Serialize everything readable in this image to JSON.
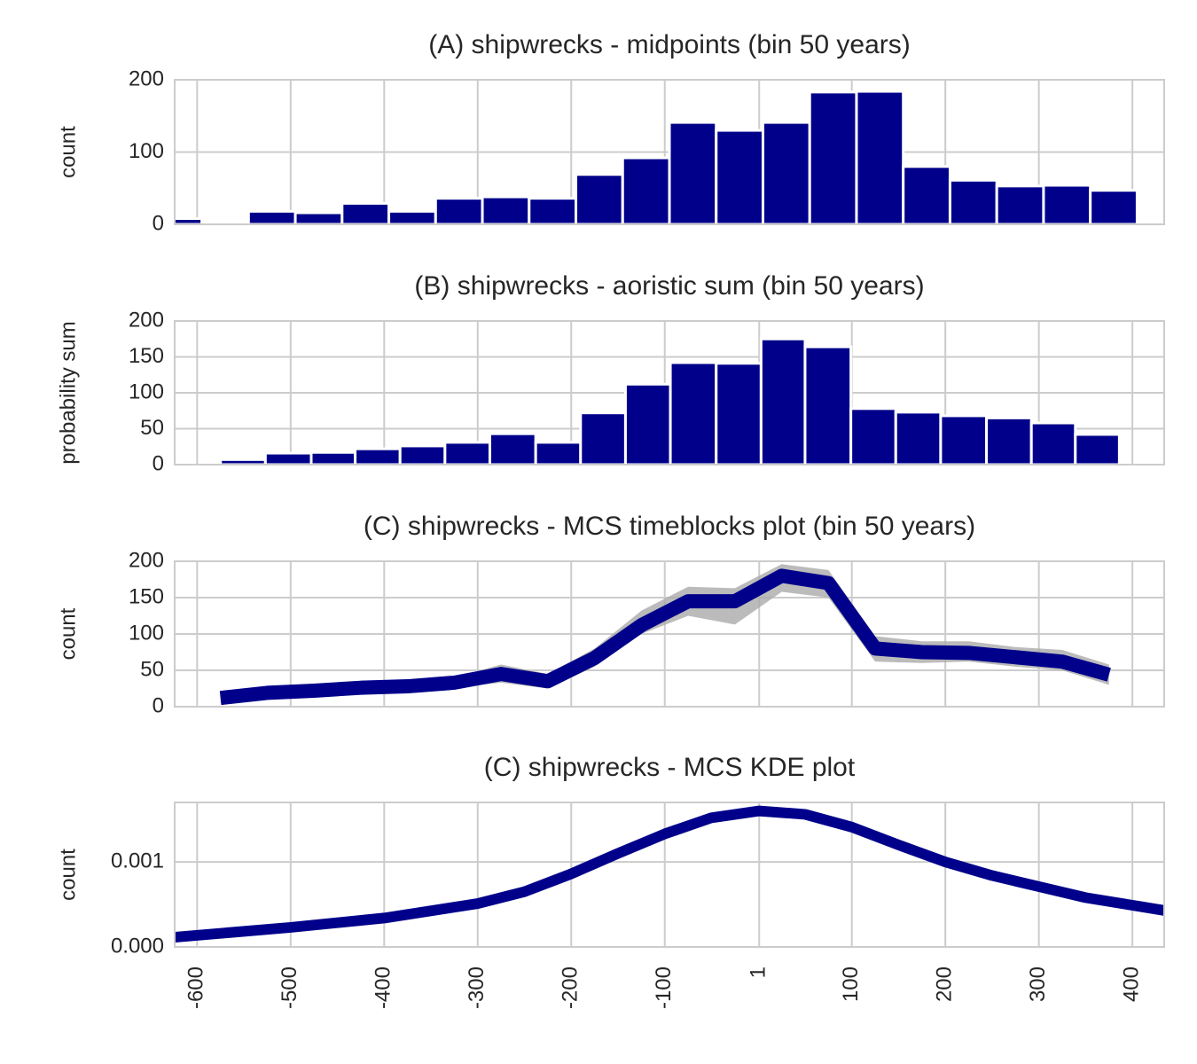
{
  "chart_data": [
    {
      "type": "histogram",
      "title": "(A) shipwrecks - midpoints (bin 50 years)",
      "ylabel": "count",
      "bins": [
        -645,
        -595,
        -545,
        -495,
        -445,
        -395,
        -345,
        -295,
        -245,
        -195,
        -145,
        -95,
        -45,
        5,
        55,
        105,
        155,
        205,
        255,
        305,
        355,
        405
      ],
      "values": [
        8,
        0,
        18,
        16,
        29,
        18,
        36,
        38,
        36,
        69,
        92,
        141,
        130,
        141,
        183,
        184,
        80,
        61,
        53,
        54,
        47
      ],
      "color": "#00008b",
      "xlim": [
        -624,
        434
      ],
      "xticks": [
        -600,
        -500,
        -400,
        -300,
        -200,
        -100,
        1,
        100,
        200,
        300,
        400
      ],
      "ylim": [
        0,
        200
      ],
      "yticks": [
        0,
        100,
        200
      ],
      "grid": true
    },
    {
      "type": "histogram",
      "title": "(B) shipwrecks - aoristic sum (bin 50 years)",
      "ylabel": "probability sum",
      "bins": [
        -575,
        -527,
        -478,
        -431,
        -383,
        -335,
        -287,
        -238,
        -190,
        -142,
        -94,
        -45,
        3,
        50,
        99,
        147,
        195,
        244,
        292,
        339,
        386
      ],
      "values": [
        7,
        16,
        17,
        22,
        26,
        31,
        43,
        31,
        72,
        112,
        142,
        141,
        175,
        164,
        78,
        73,
        68,
        65,
        58,
        42
      ],
      "color": "#00008b",
      "xlim": [
        -624,
        434
      ],
      "xticks": [
        -600,
        -500,
        -400,
        -300,
        -200,
        -100,
        1,
        100,
        200,
        300,
        400
      ],
      "ylim": [
        0,
        200
      ],
      "yticks": [
        0,
        50,
        100,
        150,
        200
      ],
      "grid": true
    },
    {
      "type": "line",
      "title": "(C) shipwrecks - MCS timeblocks plot (bin 50 years)",
      "ylabel": "count",
      "x": [
        -575,
        -525,
        -475,
        -425,
        -375,
        -325,
        -275,
        -225,
        -175,
        -125,
        -75,
        -25,
        25,
        75,
        125,
        175,
        225,
        275,
        325,
        375
      ],
      "series": [
        {
          "color": "#00008b",
          "values": [
            12,
            19,
            22,
            26,
            28,
            33,
            45,
            35,
            67,
            112,
            145,
            145,
            180,
            170,
            80,
            75,
            74,
            68,
            62,
            44
          ]
        }
      ],
      "band": {
        "color": "#aaaaaa",
        "lower": [
          5,
          14,
          17,
          21,
          22,
          26,
          33,
          25,
          55,
          100,
          125,
          113,
          158,
          150,
          62,
          60,
          62,
          55,
          50,
          30
        ],
        "upper": [
          18,
          25,
          28,
          31,
          34,
          40,
          58,
          45,
          80,
          132,
          165,
          163,
          196,
          188,
          97,
          90,
          90,
          82,
          78,
          58
        ]
      },
      "xlim": [
        -624,
        434
      ],
      "xticks": [
        -600,
        -500,
        -400,
        -300,
        -200,
        -100,
        1,
        100,
        200,
        300,
        400
      ],
      "ylim": [
        0,
        200
      ],
      "yticks": [
        0,
        50,
        100,
        150,
        200
      ],
      "grid": true
    },
    {
      "type": "line",
      "title": "(C) shipwrecks - MCS KDE plot",
      "ylabel": "count",
      "x": [
        -624,
        -500,
        -400,
        -300,
        -250,
        -200,
        -150,
        -100,
        -50,
        1,
        50,
        100,
        150,
        200,
        250,
        300,
        350,
        434
      ],
      "series": [
        {
          "color": "#00008b",
          "values": [
            0.000115,
            0.00023,
            0.00034,
            0.00051,
            0.00065,
            0.00086,
            0.0011,
            0.00133,
            0.00152,
            0.0016,
            0.00156,
            0.00141,
            0.0012,
            0.001,
            0.00084,
            0.00071,
            0.00058,
            0.00043
          ]
        }
      ],
      "xlim": [
        -624,
        434
      ],
      "xticks": [
        -600,
        -500,
        -400,
        -300,
        -200,
        -100,
        1,
        100,
        200,
        300,
        400
      ],
      "ylim": [
        0,
        0.0017
      ],
      "yticks": [
        {
          "value": 0,
          "label": "0.000"
        },
        {
          "value": 0.001,
          "label": "0.001"
        }
      ],
      "grid": true
    }
  ]
}
